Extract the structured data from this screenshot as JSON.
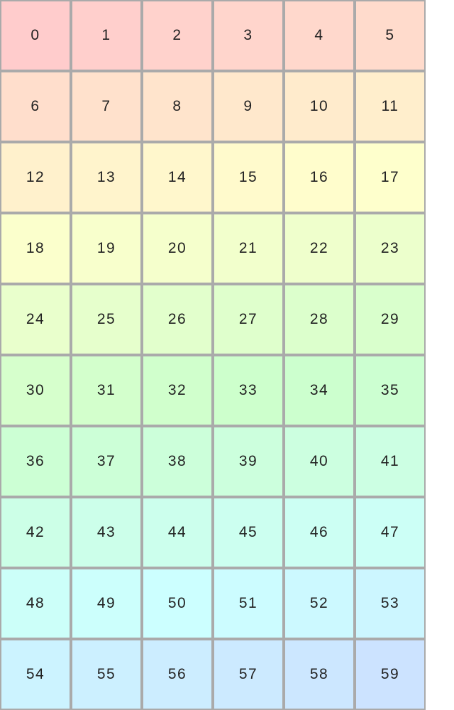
{
  "grid": {
    "columns": 6,
    "cells": [
      0,
      1,
      2,
      3,
      4,
      5,
      6,
      7,
      8,
      9,
      10,
      11,
      12,
      13,
      14,
      15,
      16,
      17,
      18,
      19,
      20,
      21,
      22,
      23,
      24,
      25,
      26,
      27,
      28,
      29,
      30,
      31,
      32,
      33,
      34,
      35,
      36,
      37,
      38,
      39,
      40,
      41,
      42,
      43,
      44,
      45,
      46,
      47,
      48,
      49,
      50,
      51,
      52,
      53,
      54,
      55,
      56,
      57,
      58,
      59
    ],
    "border_color": "#aaaaaa",
    "first_color": "#ffcccc",
    "last_color": "#cce0ff"
  }
}
